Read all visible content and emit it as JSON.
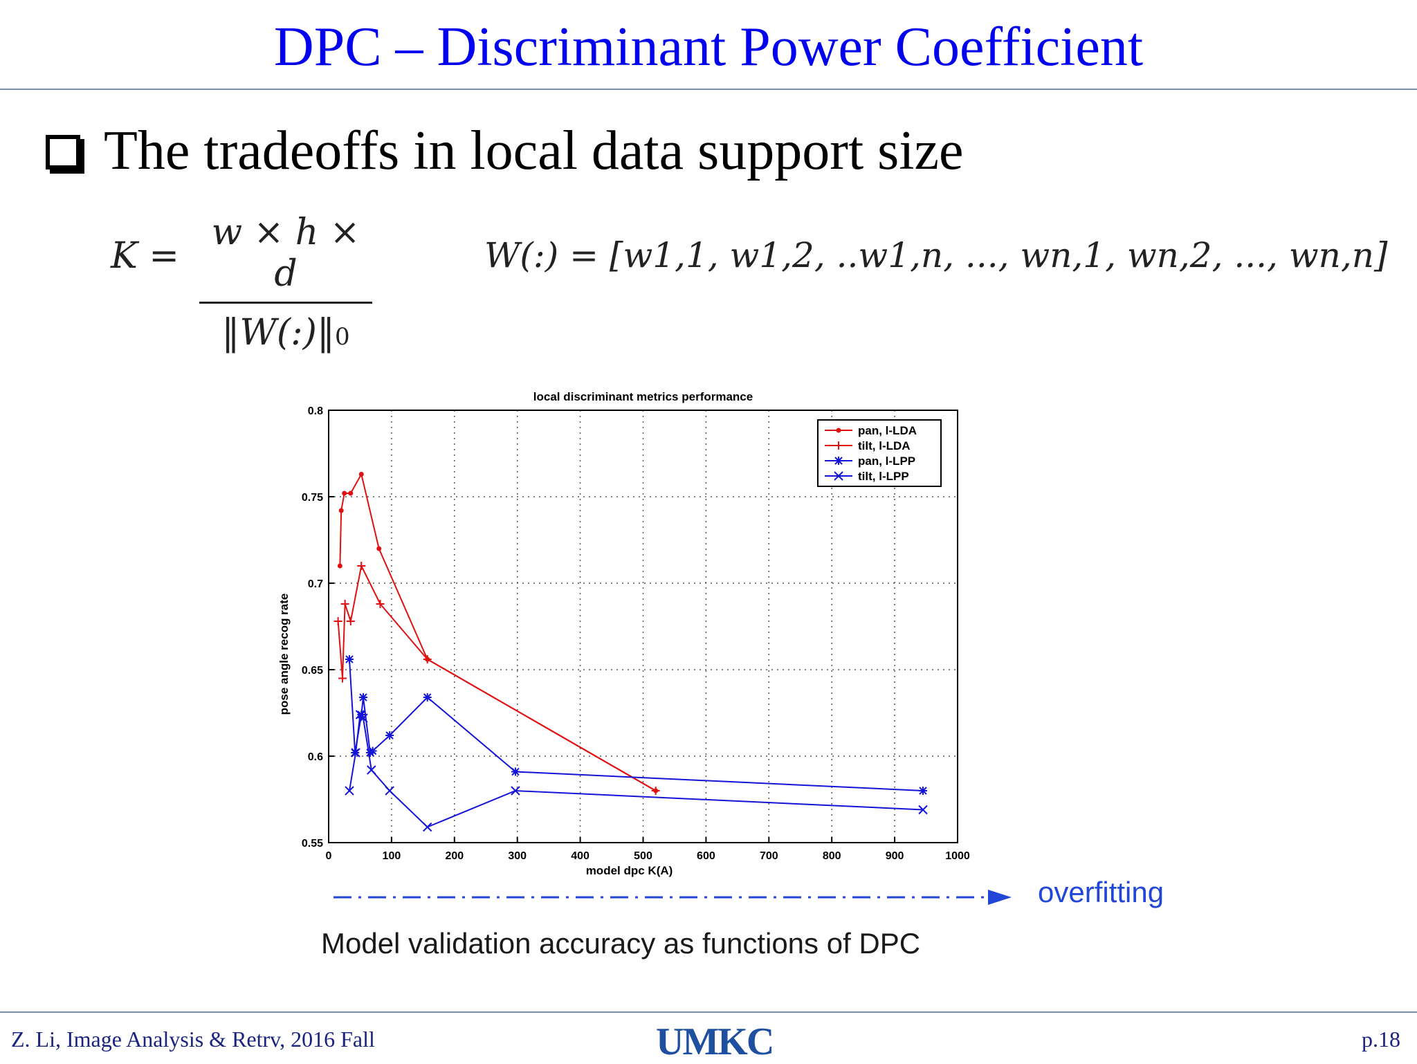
{
  "slide": {
    "title": "DPC – Discriminant Power Coefficient",
    "bullet": "The tradeoffs in local data support size",
    "eq_k_lhs": "K =",
    "eq_k_num": "w × h × d",
    "eq_k_den": "‖W(:)‖",
    "eq_k_den_sub": "0",
    "eq_w": "W(:) = [w1,1, w1,2, ..w1,n, ..., wn,1, wn,2, ..., wn,n]",
    "arrow_label": "overfitting",
    "caption": "Model validation accuracy as functions of DPC"
  },
  "footer": {
    "left": "Z. Li,  Image Analysis & Retrv, 2016 Fall",
    "logo": "UMKC",
    "right": "p.18"
  },
  "colors": {
    "title": "#0000ee",
    "red": "#e01010",
    "blue": "#1414d8",
    "arrow": "#2246d8"
  },
  "chart_data": {
    "type": "line",
    "title": "local discriminant metrics performance",
    "xlabel": "model dpc K(A)",
    "ylabel": "pose angle recog rate",
    "xlim": [
      0,
      1000
    ],
    "ylim": [
      0.55,
      0.8
    ],
    "xticks": [
      "0",
      "100",
      "200",
      "300",
      "400",
      "500",
      "600",
      "700",
      "800",
      "900",
      "1000"
    ],
    "yticks": [
      "0.55",
      "0.6",
      "0.65",
      "0.7",
      "0.75",
      "0.8"
    ],
    "grid": true,
    "legend_position": "top-right",
    "series": [
      {
        "name": "pan, l-LDA",
        "color": "#e01010",
        "marker": "dot",
        "x": [
          18,
          20,
          25,
          35,
          52,
          80,
          157,
          520
        ],
        "y": [
          0.71,
          0.742,
          0.752,
          0.752,
          0.763,
          0.72,
          0.656,
          0.58
        ]
      },
      {
        "name": "tilt, l-LDA",
        "color": "#e01010",
        "marker": "plus",
        "x": [
          15,
          22,
          26,
          35,
          52,
          82,
          157,
          520
        ],
        "y": [
          0.678,
          0.645,
          0.688,
          0.678,
          0.71,
          0.688,
          0.656,
          0.58
        ]
      },
      {
        "name": "pan, l-LPP",
        "color": "#1414d8",
        "marker": "star",
        "x": [
          33,
          42,
          52,
          55,
          66,
          70,
          97,
          157,
          297,
          945
        ],
        "y": [
          0.656,
          0.602,
          0.624,
          0.634,
          0.602,
          0.603,
          0.612,
          0.634,
          0.591,
          0.58
        ]
      },
      {
        "name": "tilt, l-LPP",
        "color": "#1414d8",
        "marker": "x",
        "x": [
          33,
          43,
          50,
          55,
          68,
          97,
          157,
          297,
          945
        ],
        "y": [
          0.58,
          0.602,
          0.624,
          0.622,
          0.592,
          0.58,
          0.559,
          0.58,
          0.569
        ]
      }
    ]
  }
}
